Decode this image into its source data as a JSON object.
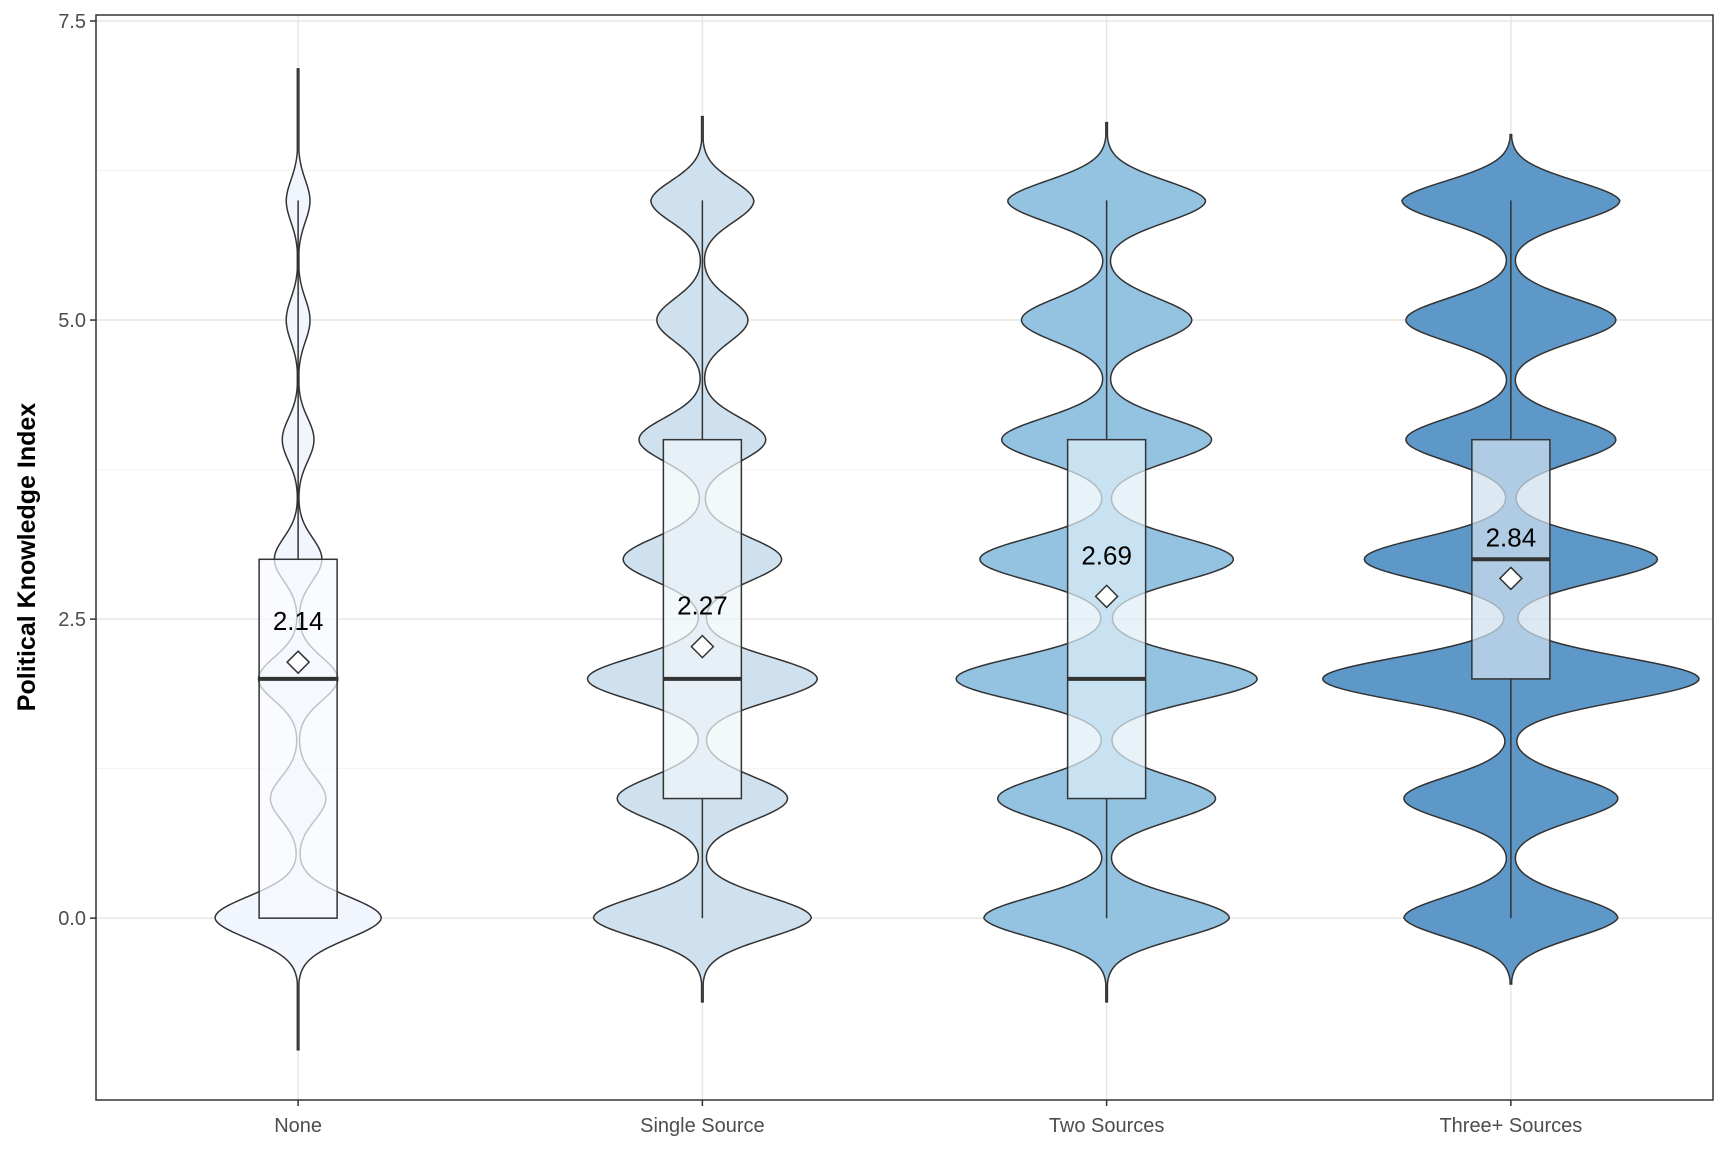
{
  "chart_data": {
    "type": "violin",
    "title": "",
    "xlabel": "",
    "ylabel": "Political Knowledge Index",
    "ylim": [
      -1.52,
      7.55
    ],
    "yticks": [
      0.0,
      2.5,
      5.0,
      7.5
    ],
    "ytick_labels": [
      "0.0",
      "2.5",
      "5.0",
      "7.5"
    ],
    "grid": true,
    "legend": "none",
    "categories": [
      "None",
      "Single Source",
      "Two Sources",
      "Three+ Sources"
    ],
    "colors": [
      "#f0f5fe",
      "#cfe1ee",
      "#94c3e2",
      "#5e98c9"
    ],
    "box_fill": [
      "#f6f9fd",
      "#eef5fa",
      "#deeef7",
      "#cfe1ef"
    ],
    "violin_range": [
      [
        -1.1,
        7.1
      ],
      [
        -0.7,
        6.7
      ],
      [
        -0.7,
        6.65
      ],
      [
        -0.55,
        6.55
      ]
    ],
    "density_levels": [
      0,
      1,
      2,
      3,
      4,
      5,
      6
    ],
    "density_widths": [
      [
        0.42,
        0.14,
        0.2,
        0.12,
        0.08,
        0.06,
        0.06
      ],
      [
        0.55,
        0.43,
        0.58,
        0.4,
        0.32,
        0.23,
        0.26
      ],
      [
        0.62,
        0.55,
        0.76,
        0.64,
        0.53,
        0.43,
        0.5
      ],
      [
        0.54,
        0.54,
        0.95,
        0.74,
        0.53,
        0.53,
        0.55
      ]
    ],
    "boxes": [
      {
        "q1": 0,
        "median": 2,
        "q3": 3,
        "whisker_low": 0,
        "whisker_high": 6
      },
      {
        "q1": 1,
        "median": 2,
        "q3": 4,
        "whisker_low": 0,
        "whisker_high": 6
      },
      {
        "q1": 1,
        "median": 2,
        "q3": 4,
        "whisker_low": 0,
        "whisker_high": 6
      },
      {
        "q1": 2,
        "median": 3,
        "q3": 4,
        "whisker_low": 0,
        "whisker_high": 6
      }
    ],
    "means": [
      2.14,
      2.27,
      2.69,
      2.84
    ],
    "mean_labels": [
      "2.14",
      "2.27",
      "2.69",
      "2.84"
    ]
  }
}
